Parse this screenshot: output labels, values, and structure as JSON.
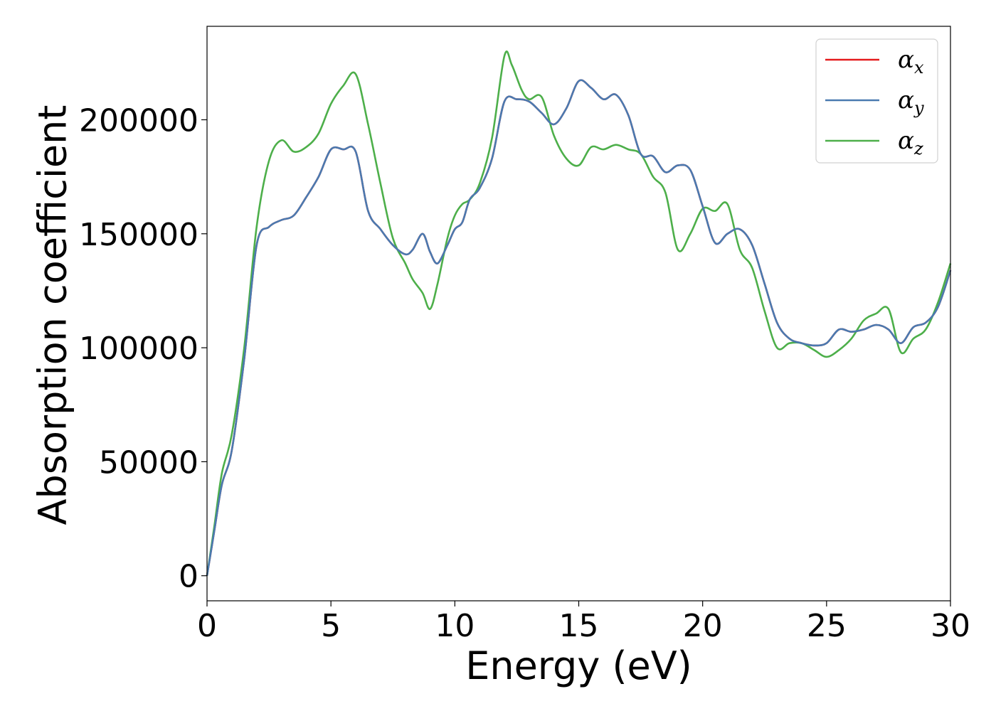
{
  "chart_data": {
    "type": "line",
    "title": "",
    "xlabel": "Energy (eV)",
    "ylabel": "Absorption coefficient",
    "xlim": [
      0,
      30
    ],
    "ylim": [
      -11000,
      241000
    ],
    "xticks": [
      0,
      5,
      10,
      15,
      20,
      25,
      30
    ],
    "xtick_labels": [
      "0",
      "5",
      "10",
      "15",
      "20",
      "25",
      "30"
    ],
    "yticks": [
      0,
      50000,
      100000,
      150000,
      200000
    ],
    "ytick_labels": [
      "0",
      "50000",
      "100000",
      "150000",
      "200000"
    ],
    "grid": false,
    "legend": "top-right",
    "series": [
      {
        "name_main": "α",
        "name_sub": "x",
        "color": "#e41a1c",
        "x": [
          0,
          0.3,
          0.6,
          1.0,
          1.5,
          2.0,
          2.5,
          3.0,
          3.5,
          4.0,
          4.5,
          5.0,
          5.5,
          6.0,
          6.5,
          7.0,
          7.5,
          8.0,
          8.3,
          8.7,
          9.0,
          9.3,
          9.7,
          10.0,
          10.3,
          10.6,
          11.0,
          11.5,
          12.0,
          12.5,
          13.0,
          13.5,
          14.0,
          14.5,
          15.0,
          15.5,
          16.0,
          16.5,
          17.0,
          17.5,
          18.0,
          18.5,
          19.0,
          19.5,
          20.0,
          20.5,
          21.0,
          21.5,
          22.0,
          22.5,
          23.0,
          23.5,
          24.0,
          24.5,
          25.0,
          25.5,
          26.0,
          26.5,
          27.0,
          27.5,
          28.0,
          28.5,
          29.0,
          29.5,
          30.0
        ],
        "y": [
          0,
          20000,
          40000,
          55000,
          95000,
          145000,
          153000,
          156000,
          158000,
          166000,
          175000,
          187000,
          187000,
          186000,
          160000,
          152000,
          145000,
          141000,
          143000,
          150000,
          142000,
          137000,
          145000,
          152000,
          155000,
          165000,
          170000,
          183000,
          208000,
          209000,
          208000,
          203000,
          198000,
          205000,
          217000,
          214000,
          209000,
          211000,
          202000,
          185000,
          184000,
          177000,
          180000,
          178000,
          162000,
          146000,
          150000,
          152000,
          145000,
          128000,
          111000,
          104000,
          102000,
          101000,
          102000,
          108000,
          107000,
          108000,
          110000,
          108000,
          102000,
          109000,
          111000,
          118000,
          134000
        ]
      },
      {
        "name_main": "α",
        "name_sub": "y",
        "color": "#4a7ab0",
        "x": [
          0,
          0.3,
          0.6,
          1.0,
          1.5,
          2.0,
          2.5,
          3.0,
          3.5,
          4.0,
          4.5,
          5.0,
          5.5,
          6.0,
          6.5,
          7.0,
          7.5,
          8.0,
          8.3,
          8.7,
          9.0,
          9.3,
          9.7,
          10.0,
          10.3,
          10.6,
          11.0,
          11.5,
          12.0,
          12.5,
          13.0,
          13.5,
          14.0,
          14.5,
          15.0,
          15.5,
          16.0,
          16.5,
          17.0,
          17.5,
          18.0,
          18.5,
          19.0,
          19.5,
          20.0,
          20.5,
          21.0,
          21.5,
          22.0,
          22.5,
          23.0,
          23.5,
          24.0,
          24.5,
          25.0,
          25.5,
          26.0,
          26.5,
          27.0,
          27.5,
          28.0,
          28.5,
          29.0,
          29.5,
          30.0
        ],
        "y": [
          0,
          20000,
          40000,
          55000,
          95000,
          145000,
          153000,
          156000,
          158000,
          166000,
          175000,
          187000,
          187000,
          186000,
          160000,
          152000,
          145000,
          141000,
          143000,
          150000,
          142000,
          137000,
          145000,
          152000,
          155000,
          165000,
          170000,
          183000,
          208000,
          209000,
          208000,
          203000,
          198000,
          205000,
          217000,
          214000,
          209000,
          211000,
          202000,
          185000,
          184000,
          177000,
          180000,
          178000,
          162000,
          146000,
          150000,
          152000,
          145000,
          128000,
          111000,
          104000,
          102000,
          101000,
          102000,
          108000,
          107000,
          108000,
          110000,
          108000,
          102000,
          109000,
          111000,
          118000,
          134000
        ]
      },
      {
        "name_main": "α",
        "name_sub": "z",
        "color": "#4daf4a",
        "x": [
          0,
          0.3,
          0.6,
          1.0,
          1.5,
          2.0,
          2.5,
          3.0,
          3.5,
          4.0,
          4.5,
          5.0,
          5.5,
          6.0,
          6.5,
          7.0,
          7.5,
          8.0,
          8.3,
          8.7,
          9.0,
          9.3,
          9.7,
          10.0,
          10.3,
          10.6,
          11.0,
          11.5,
          12.0,
          12.3,
          12.7,
          13.0,
          13.5,
          14.0,
          14.5,
          15.0,
          15.5,
          16.0,
          16.5,
          17.0,
          17.5,
          18.0,
          18.5,
          19.0,
          19.5,
          20.0,
          20.5,
          21.0,
          21.5,
          22.0,
          22.5,
          23.0,
          23.5,
          24.0,
          24.5,
          25.0,
          25.5,
          26.0,
          26.5,
          27.0,
          27.5,
          28.0,
          28.5,
          29.0,
          29.5,
          30.0
        ],
        "y": [
          0,
          22000,
          45000,
          62000,
          100000,
          153000,
          182000,
          191000,
          186000,
          188000,
          194000,
          207000,
          215000,
          220000,
          198000,
          172000,
          148000,
          137000,
          130000,
          124000,
          117000,
          128000,
          148000,
          158000,
          163000,
          165000,
          172000,
          192000,
          228000,
          224000,
          213000,
          209000,
          210000,
          193000,
          183000,
          180000,
          188000,
          187000,
          189000,
          187000,
          185000,
          175000,
          168000,
          143000,
          150000,
          161000,
          160000,
          163000,
          143000,
          135000,
          116000,
          100000,
          102000,
          102000,
          99000,
          96000,
          99000,
          104000,
          112000,
          115000,
          117000,
          98000,
          104000,
          108000,
          120000,
          137000
        ]
      }
    ]
  }
}
